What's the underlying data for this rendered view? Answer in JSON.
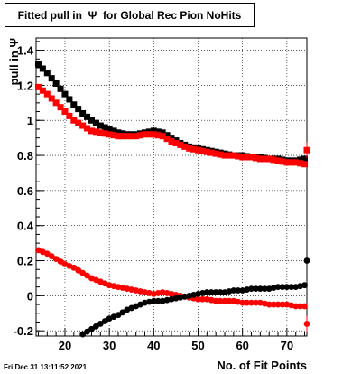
{
  "chart_data": {
    "type": "scatter",
    "title": "Fitted pull in  Ψ  for Global Rec Pion NoHits",
    "xlabel": "No. of Fit Points",
    "ylabel": "pull in  Ψ",
    "xlim": [
      13.5,
      74.5
    ],
    "ylim": [
      -0.23,
      1.47
    ],
    "xticks": [
      20,
      30,
      40,
      50,
      60,
      70
    ],
    "yticks": [
      -0.2,
      0,
      0.2,
      0.4,
      0.6,
      0.8,
      1,
      1.2,
      1.4
    ],
    "grid": true,
    "series": [
      {
        "marker": "square",
        "color": "#000000",
        "kind": "mean",
        "x": [
          14,
          16,
          18,
          20,
          22,
          24,
          26,
          28,
          30,
          32,
          34,
          36,
          38,
          40,
          42,
          44,
          46,
          48,
          50,
          52,
          54,
          56,
          58,
          60,
          62,
          64,
          66,
          68,
          70,
          72,
          74
        ],
        "y": [
          1.32,
          1.27,
          1.21,
          1.15,
          1.09,
          1.04,
          1.0,
          0.97,
          0.95,
          0.93,
          0.92,
          0.92,
          0.93,
          0.94,
          0.93,
          0.9,
          0.87,
          0.85,
          0.84,
          0.83,
          0.82,
          0.81,
          0.8,
          0.8,
          0.79,
          0.79,
          0.78,
          0.78,
          0.77,
          0.77,
          0.78
        ]
      },
      {
        "marker": "square",
        "color": "#ff0000",
        "kind": "mean",
        "x": [
          14,
          16,
          18,
          20,
          22,
          24,
          26,
          28,
          30,
          32,
          34,
          36,
          38,
          40,
          42,
          44,
          46,
          48,
          50,
          52,
          54,
          56,
          58,
          60,
          62,
          64,
          66,
          68,
          70,
          72,
          74
        ],
        "y": [
          1.19,
          1.15,
          1.1,
          1.05,
          1.0,
          0.97,
          0.94,
          0.93,
          0.92,
          0.91,
          0.91,
          0.91,
          0.92,
          0.92,
          0.91,
          0.88,
          0.86,
          0.84,
          0.83,
          0.82,
          0.81,
          0.8,
          0.8,
          0.79,
          0.79,
          0.78,
          0.78,
          0.77,
          0.76,
          0.76,
          0.75
        ]
      },
      {
        "marker": "circle",
        "color": "#ff0000",
        "kind": "sigma",
        "x": [
          14,
          16,
          18,
          20,
          22,
          24,
          26,
          28,
          30,
          32,
          34,
          36,
          38,
          40,
          42,
          44,
          46,
          48,
          50,
          52,
          54,
          56,
          58,
          60,
          62,
          64,
          66,
          68,
          70,
          72,
          74
        ],
        "y": [
          0.26,
          0.24,
          0.21,
          0.18,
          0.16,
          0.13,
          0.1,
          0.08,
          0.06,
          0.05,
          0.04,
          0.03,
          0.02,
          0.01,
          0.02,
          0.01,
          0.0,
          -0.01,
          -0.02,
          -0.02,
          -0.03,
          -0.03,
          -0.03,
          -0.04,
          -0.04,
          -0.04,
          -0.05,
          -0.05,
          -0.05,
          -0.06,
          -0.06
        ]
      },
      {
        "marker": "circle",
        "color": "#000000",
        "kind": "sigma",
        "x": [
          24,
          26,
          28,
          30,
          32,
          34,
          36,
          38,
          40,
          42,
          44,
          46,
          48,
          50,
          52,
          54,
          56,
          58,
          60,
          62,
          64,
          66,
          68,
          70,
          72,
          74
        ],
        "y": [
          -0.22,
          -0.19,
          -0.16,
          -0.13,
          -0.11,
          -0.08,
          -0.06,
          -0.04,
          -0.03,
          -0.03,
          -0.02,
          -0.01,
          0.0,
          0.01,
          0.02,
          0.02,
          0.02,
          0.03,
          0.03,
          0.04,
          0.04,
          0.04,
          0.05,
          0.05,
          0.05,
          0.06
        ]
      }
    ],
    "edge_points": [
      {
        "marker": "square",
        "color": "#ff0000",
        "x": 74.5,
        "y": 0.83
      },
      {
        "marker": "circle",
        "color": "#000000",
        "x": 74.5,
        "y": 0.2
      },
      {
        "marker": "circle",
        "color": "#ff0000",
        "x": 74.5,
        "y": -0.16
      }
    ]
  },
  "footer": {
    "timestamp": "Fri Dec 31 13:11:52 2021"
  }
}
